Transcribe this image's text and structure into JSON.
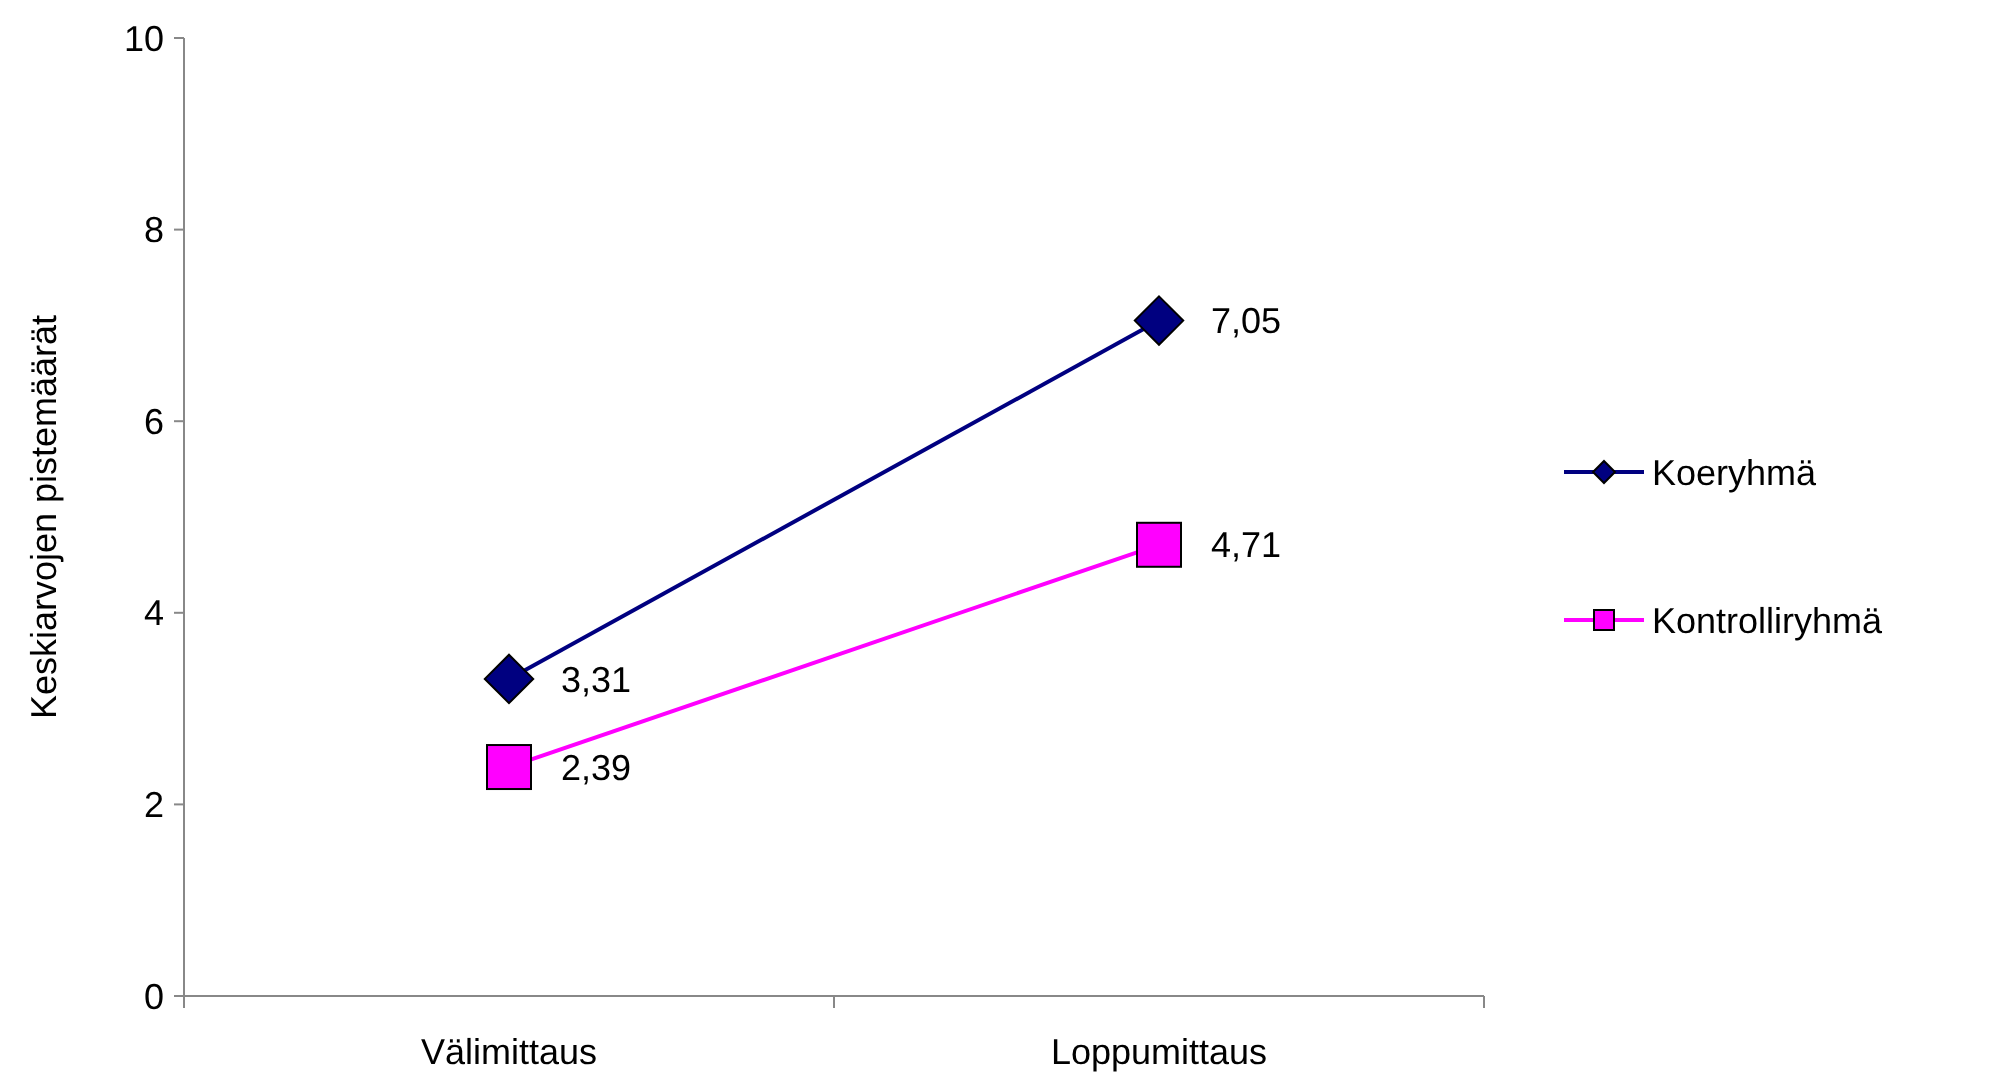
{
  "chart_data": {
    "type": "line",
    "ylabel": "Keskiarvojen pistemäärät",
    "categories": [
      "Välimittaus",
      "Loppumittaus"
    ],
    "series": [
      {
        "name": "Koeryhmä",
        "color": "#000080",
        "values": [
          3.31,
          7.05
        ],
        "marker": "diamond",
        "value_labels": [
          "3,31",
          "7,05"
        ]
      },
      {
        "name": "Kontrolliryhmä",
        "color": "#ff00ff",
        "values": [
          2.39,
          4.71
        ],
        "marker": "square",
        "value_labels": [
          "2,39",
          "4,71"
        ]
      }
    ],
    "ylim": [
      0,
      10
    ],
    "yticks": [
      0,
      2,
      4,
      6,
      8,
      10
    ],
    "grid": false,
    "legend": "right"
  }
}
